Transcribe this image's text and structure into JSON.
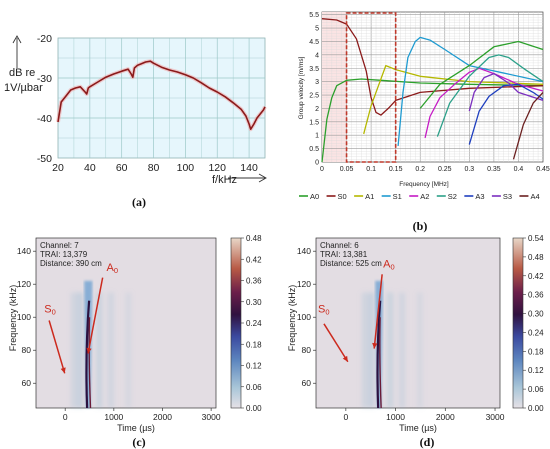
{
  "chart_data": [
    {
      "type": "line",
      "panel_label": "(a)",
      "ylabel_line1": "dB re",
      "ylabel_line2": "1V/µbar",
      "xlabel": "f/kHz",
      "xlim": [
        20,
        150
      ],
      "ylim": [
        -50,
        -20
      ],
      "x_ticks": [
        20,
        40,
        60,
        80,
        100,
        120,
        140
      ],
      "y_ticks": [
        -50,
        -40,
        -30,
        -20
      ],
      "grid": true,
      "colors": {
        "line": "#8b1a1a",
        "background": "#e6f6fc",
        "grid": "#9cc8c8"
      },
      "series": [
        {
          "x": [
            20,
            22,
            25,
            28,
            31,
            34,
            37,
            38,
            39,
            40,
            45,
            50,
            55,
            60,
            64,
            66,
            67,
            68,
            70,
            72,
            75,
            78,
            80,
            85,
            90,
            95,
            100,
            105,
            110,
            115,
            120,
            125,
            130,
            135,
            138,
            140,
            141,
            143,
            145,
            147,
            149,
            150
          ],
          "y": [
            -41,
            -36,
            -34.5,
            -33,
            -32.5,
            -32.2,
            -33.5,
            -34,
            -32.5,
            -32.2,
            -31,
            -29.8,
            -29,
            -28.3,
            -27.8,
            -29,
            -29.8,
            -27.5,
            -26.8,
            -26.5,
            -26,
            -25.8,
            -26.3,
            -27.3,
            -28,
            -28.5,
            -29.2,
            -30,
            -31.2,
            -32.5,
            -33.5,
            -34.7,
            -36.2,
            -37.8,
            -39.5,
            -41.5,
            -42.8,
            -41.5,
            -40,
            -39,
            -38,
            -37.2
          ]
        }
      ]
    },
    {
      "type": "line",
      "panel_label": "(b)",
      "xlabel": "Frequency [MHz]",
      "ylabel": "Group velocity [m/ms]",
      "xlim": [
        0,
        0.45
      ],
      "ylim": [
        0,
        5.6
      ],
      "x_ticks": [
        0,
        0.05,
        0.1,
        0.15,
        0.2,
        0.25,
        0.3,
        0.35,
        0.4,
        0.45
      ],
      "y_ticks": [
        0,
        0.5,
        1,
        1.5,
        2,
        2.5,
        3,
        3.5,
        4,
        4.5,
        5,
        5.5
      ],
      "grid": true,
      "legend_position": "bottom",
      "highlight_box": {
        "x": [
          0.05,
          0.15
        ],
        "y": [
          0,
          5.6
        ],
        "color": "#c0392b"
      },
      "shaded_region": {
        "x": [
          0,
          0.05
        ]
      },
      "series": [
        {
          "name": "A0",
          "color": "#2ca02c",
          "x": [
            0,
            0.01,
            0.02,
            0.03,
            0.05,
            0.08,
            0.12,
            0.2,
            0.3,
            0.45
          ],
          "y": [
            0,
            1.6,
            2.4,
            2.85,
            3.05,
            3.1,
            3.05,
            2.95,
            2.9,
            2.85
          ]
        },
        {
          "name": "S0",
          "color": "#8b1a1a",
          "x": [
            0,
            0.03,
            0.05,
            0.07,
            0.09,
            0.1,
            0.11,
            0.12,
            0.135,
            0.15,
            0.2,
            0.3,
            0.45
          ],
          "y": [
            5.35,
            5.3,
            5.15,
            4.6,
            3.4,
            2.4,
            1.85,
            1.75,
            2.0,
            2.3,
            2.6,
            2.75,
            2.85
          ]
        },
        {
          "name": "A1",
          "color": "#b5b800",
          "x": [
            0.085,
            0.1,
            0.12,
            0.13,
            0.15,
            0.2,
            0.3,
            0.45
          ],
          "y": [
            1.05,
            2.1,
            3.1,
            3.6,
            3.45,
            3.2,
            3.0,
            2.9
          ]
        },
        {
          "name": "S1",
          "color": "#1f9bd1",
          "x": [
            0.155,
            0.165,
            0.175,
            0.19,
            0.2,
            0.22,
            0.25,
            0.3,
            0.45
          ],
          "y": [
            0.6,
            2.6,
            3.9,
            4.5,
            4.65,
            4.55,
            4.2,
            3.6,
            3.0
          ]
        },
        {
          "name": "A2",
          "color": "#c51bc5",
          "x": [
            0.21,
            0.22,
            0.24,
            0.27,
            0.3,
            0.32,
            0.35,
            0.4,
            0.45
          ],
          "y": [
            0.9,
            1.7,
            2.4,
            2.9,
            3.35,
            3.5,
            3.3,
            2.9,
            2.65
          ]
        },
        {
          "name": "S2",
          "color": "#2ca089",
          "x": [
            0.235,
            0.26,
            0.3,
            0.34,
            0.36,
            0.38,
            0.41,
            0.45
          ],
          "y": [
            0.95,
            2.2,
            3.2,
            3.9,
            4.0,
            3.9,
            3.5,
            3.0
          ]
        },
        {
          "name": "A3",
          "color": "#1f3fbf",
          "x": [
            0.3,
            0.32,
            0.34,
            0.37,
            0.4,
            0.43,
            0.45
          ],
          "y": [
            0.65,
            1.9,
            2.45,
            2.85,
            2.9,
            2.6,
            2.35
          ]
        },
        {
          "name": "S3",
          "color": "#7b2fbf",
          "x": [
            0.3,
            0.31,
            0.33,
            0.35,
            0.38,
            0.4,
            0.45
          ],
          "y": [
            1.9,
            2.6,
            3.15,
            3.3,
            2.95,
            2.6,
            2.3
          ]
        },
        {
          "name": "A4",
          "color": "#6b2020",
          "x": [
            0.39,
            0.41,
            0.43,
            0.45
          ],
          "y": [
            0.1,
            1.4,
            2.2,
            2.6
          ]
        },
        {
          "name": "",
          "color": "#2ca02c",
          "x": [
            0.2,
            0.24,
            0.3,
            0.35,
            0.4,
            0.45
          ],
          "y": [
            2.0,
            2.9,
            3.6,
            4.3,
            4.5,
            4.2
          ]
        }
      ]
    },
    {
      "type": "heatmap",
      "panel_label": "(c)",
      "info": [
        "Channel: 7",
        "TRAI: 13,379",
        "Distance: 390 cm"
      ],
      "xlabel": "Time (µs)",
      "ylabel": "Frequency (kHz)",
      "xlim": [
        -600,
        3100
      ],
      "ylim": [
        45,
        148
      ],
      "x_ticks": [
        0,
        1000,
        2000,
        3000
      ],
      "y_ticks": [
        60,
        80,
        100,
        120,
        140
      ],
      "colorbar_ticks": [
        0.0,
        0.06,
        0.12,
        0.18,
        0.24,
        0.3,
        0.36,
        0.42,
        0.48
      ],
      "colorbar_max": 0.48,
      "mode_labels": [
        {
          "text": "S",
          "sub": "0",
          "x": -430,
          "y": 103
        },
        {
          "text": "A",
          "sub": "0",
          "x": 850,
          "y": 128
        }
      ],
      "arrows": [
        {
          "from": [
            -330,
            98
          ],
          "to": [
            -10,
            66
          ]
        },
        {
          "from": [
            770,
            124
          ],
          "to": [
            470,
            78
          ]
        }
      ],
      "ridge_times_us": [
        430,
        520
      ],
      "ridge_freq_range": [
        45,
        110
      ]
    },
    {
      "type": "heatmap",
      "panel_label": "(d)",
      "info": [
        "Channel: 6",
        "TRAI: 13,381",
        "Distance: 525 cm"
      ],
      "xlabel": "Time (µs)",
      "ylabel": "Frequency (kHz)",
      "xlim": [
        -600,
        3100
      ],
      "ylim": [
        45,
        148
      ],
      "x_ticks": [
        0,
        1000,
        2000,
        3000
      ],
      "y_ticks": [
        60,
        80,
        100,
        120,
        140
      ],
      "colorbar_ticks": [
        0.0,
        0.06,
        0.12,
        0.18,
        0.24,
        0.3,
        0.36,
        0.42,
        0.48,
        0.54
      ],
      "colorbar_max": 0.54,
      "mode_labels": [
        {
          "text": "S",
          "sub": "0",
          "x": -560,
          "y": 103
        },
        {
          "text": "A",
          "sub": "0",
          "x": 750,
          "y": 130
        }
      ],
      "arrows": [
        {
          "from": [
            -440,
            96
          ],
          "to": [
            40,
            73
          ]
        },
        {
          "from": [
            730,
            126
          ],
          "to": [
            570,
            81
          ]
        }
      ],
      "ridge_times_us": [
        630,
        710
      ],
      "ridge_freq_range": [
        45,
        110
      ]
    }
  ]
}
